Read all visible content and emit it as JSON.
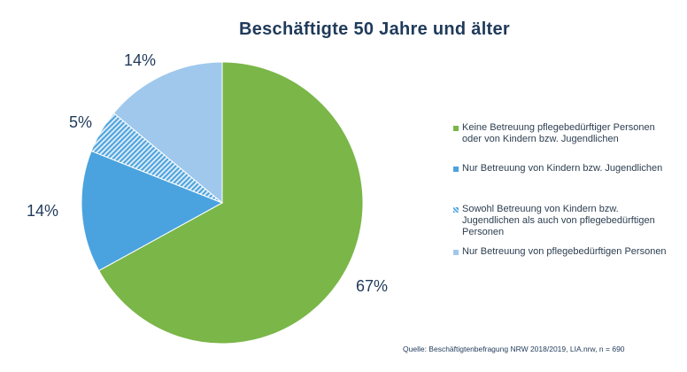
{
  "chart_data": {
    "type": "pie",
    "title": "Beschäftigte 50 Jahre und älter",
    "slices": [
      {
        "label": "Keine Betreuung pflegebedürftiger Personen oder von Kindern bzw. Jugendlichen",
        "value": 67,
        "value_label": "67%",
        "color": "#7ab648",
        "pattern": "solid"
      },
      {
        "label": "Nur Betreuung von Kindern bzw. Jugendlichen",
        "value": 14,
        "value_label": "14%",
        "color": "#4aa3de",
        "pattern": "solid"
      },
      {
        "label": "Sowohl Betreuung von Kindern bzw. Jugendlichen als auch von pflegebedürftigen Personen",
        "value": 5,
        "value_label": "5%",
        "color": "#4aa3de",
        "pattern": "hatched"
      },
      {
        "label": "Nur Betreuung von pflegebedürftigen Personen",
        "value": 14,
        "value_label": "14%",
        "color": "#9fc8ec",
        "pattern": "solid"
      }
    ],
    "legend_placement": "right",
    "source": "Quelle: Beschäftigtenbefragung NRW 2018/2019, LIA.nrw, n = 690"
  },
  "legend": {
    "items": [
      {
        "lines": [
          "Keine Betreuung pflegebedürftiger Personen",
          "oder von Kindern bzw. Jugendlichen"
        ]
      },
      {
        "lines": [
          "Nur Betreuung von Kindern bzw. Jugendlichen"
        ]
      },
      {
        "lines": [
          "Sowohl Betreuung von Kindern bzw.",
          "Jugendlichen als auch von pflegebedürftigen",
          "Personen"
        ]
      },
      {
        "lines": [
          "Nur Betreuung von pflegebedürftigen Personen"
        ]
      }
    ]
  }
}
